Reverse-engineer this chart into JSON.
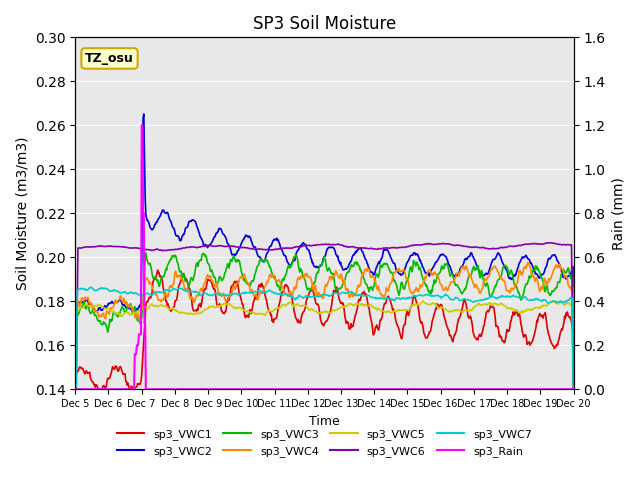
{
  "title": "SP3 Soil Moisture",
  "xlabel": "Time",
  "ylabel_left": "Soil Moisture (m3/m3)",
  "ylabel_right": "Rain (mm)",
  "ylim_left": [
    0.14,
    0.3
  ],
  "ylim_right": [
    0.0,
    1.6
  ],
  "annotation_text": "TZ_osu",
  "annotation_bg": "#ffffcc",
  "annotation_border": "#ccaa00",
  "bg_color": "#e8e8e8",
  "series": {
    "sp3_VWC1": {
      "color": "#dd0000",
      "lw": 1.2
    },
    "sp3_VWC2": {
      "color": "#0000dd",
      "lw": 1.2
    },
    "sp3_VWC3": {
      "color": "#00bb00",
      "lw": 1.2
    },
    "sp3_VWC4": {
      "color": "#ff8800",
      "lw": 1.2
    },
    "sp3_VWC5": {
      "color": "#cccc00",
      "lw": 1.2
    },
    "sp3_VWC6": {
      "color": "#8800aa",
      "lw": 1.2
    },
    "sp3_VWC7": {
      "color": "#00cccc",
      "lw": 1.2
    },
    "sp3_Rain": {
      "color": "#ff00ff",
      "lw": 1.5
    }
  },
  "x_tick_labels": [
    "Dec 5",
    "Dec 6",
    "Dec 7",
    "Dec 8",
    "Dec 9",
    "Dec 10",
    "Dec 11",
    "Dec 12",
    "Dec 13",
    "Dec 14",
    "Dec 15",
    "Dec 16",
    "Dec 17",
    "Dec 18",
    "Dec 19",
    "Dec 20"
  ],
  "n_days": 15,
  "pts_per_day": 48
}
